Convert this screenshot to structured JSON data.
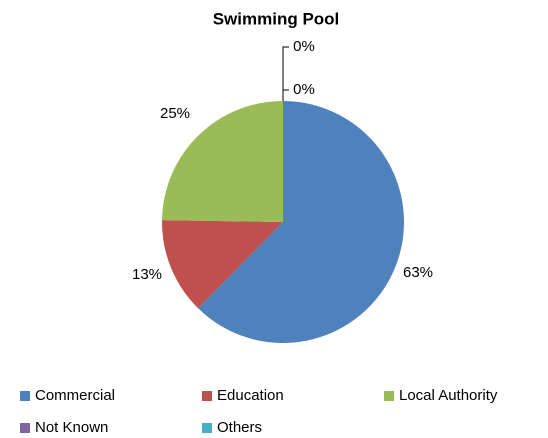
{
  "chart_data": {
    "type": "pie",
    "title": "Swimming Pool",
    "categories": [
      "Commercial",
      "Education",
      "Local Authority",
      "Not Known",
      "Others"
    ],
    "values": [
      63,
      13,
      25,
      0,
      0
    ],
    "value_labels": [
      "63%",
      "13%",
      "25%",
      "0%",
      "0%"
    ],
    "colors": [
      "#4f81bd",
      "#c0504d",
      "#9bbb59",
      "#8064a2",
      "#4bacc6"
    ]
  }
}
